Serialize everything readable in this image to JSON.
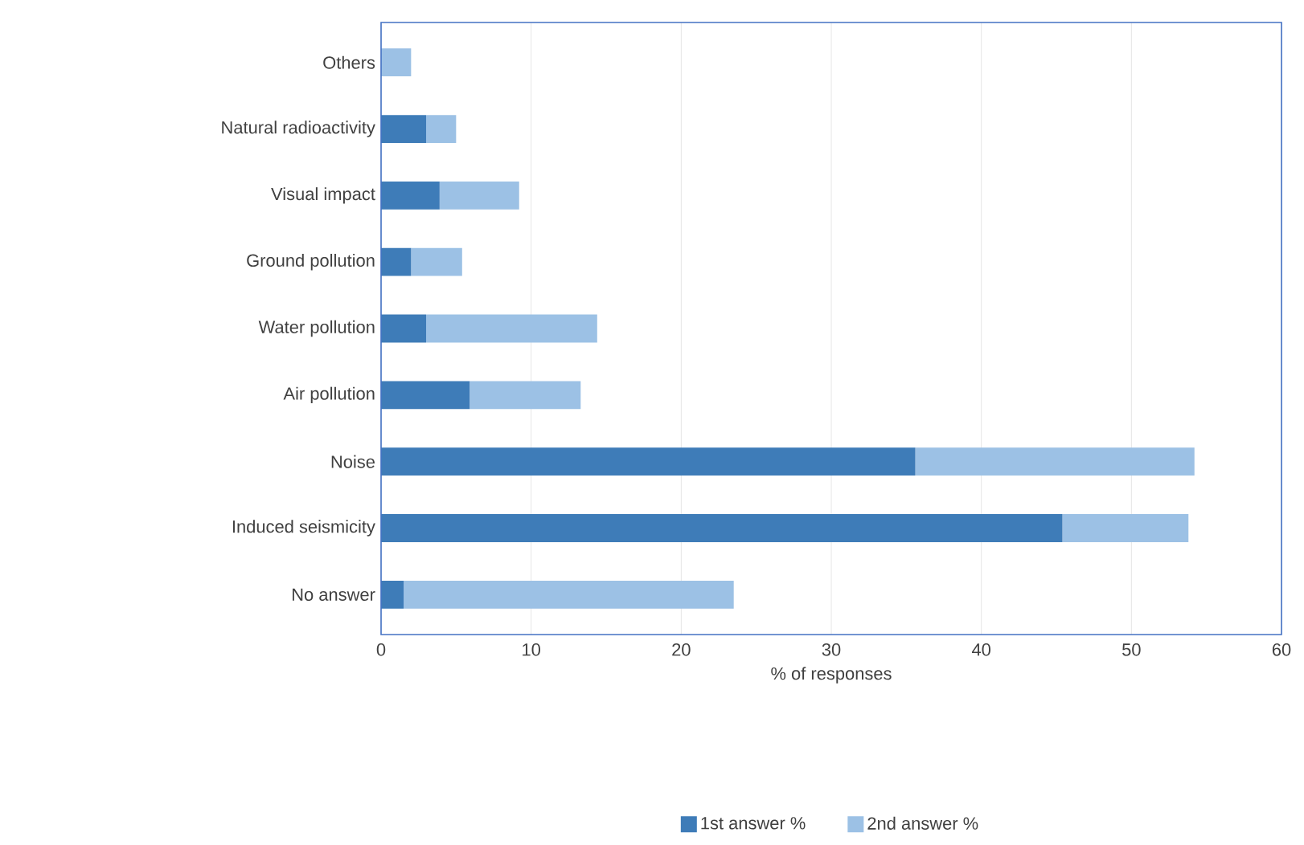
{
  "chart_data": {
    "type": "bar",
    "orientation": "horizontal",
    "stacked": true,
    "categories": [
      "Others",
      "Natural radioactivity",
      "Visual impact",
      "Ground pollution",
      "Water pollution",
      "Air pollution",
      "Noise",
      "Induced seismicity",
      "No answer"
    ],
    "series": [
      {
        "name": "1st answer %",
        "color": "#3e7cb8",
        "values": [
          0,
          3.0,
          3.9,
          2.0,
          3.0,
          5.9,
          35.6,
          45.4,
          1.5
        ]
      },
      {
        "name": "2nd answer %",
        "color": "#9cc1e5",
        "values": [
          2.0,
          2.0,
          5.3,
          3.4,
          11.4,
          7.4,
          18.6,
          8.4,
          22.0
        ]
      }
    ],
    "xlabel": "% of responses",
    "xlim": [
      0,
      60
    ],
    "xticks": [
      0,
      10,
      20,
      30,
      40,
      50,
      60
    ],
    "grid": "x",
    "legend": "bottom"
  }
}
